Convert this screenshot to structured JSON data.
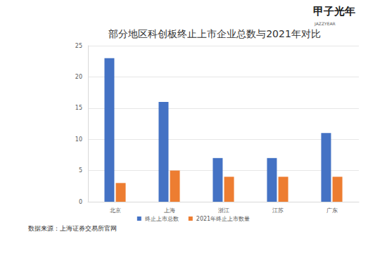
{
  "chart_data": {
    "type": "bar",
    "title": "部分地区科创板终止上市企业总数与2021年对比",
    "categories": [
      "北京",
      "上海",
      "浙江",
      "江苏",
      "广东"
    ],
    "series": [
      {
        "name": "终止上市总数",
        "color": "#4472c4",
        "values": [
          23,
          16,
          7,
          7,
          11
        ]
      },
      {
        "name": "2021年终止上市数量",
        "color": "#ed7d31",
        "values": [
          3,
          5,
          4,
          4,
          4
        ]
      }
    ],
    "ylim": [
      0,
      25
    ],
    "yticks": [
      0,
      5,
      10,
      15,
      20,
      25
    ],
    "grid": true,
    "legend": "bottom",
    "annotations": [
      "数据来源：上海证券交易所官网",
      "甲子光年",
      "JAZZYEAR"
    ]
  }
}
